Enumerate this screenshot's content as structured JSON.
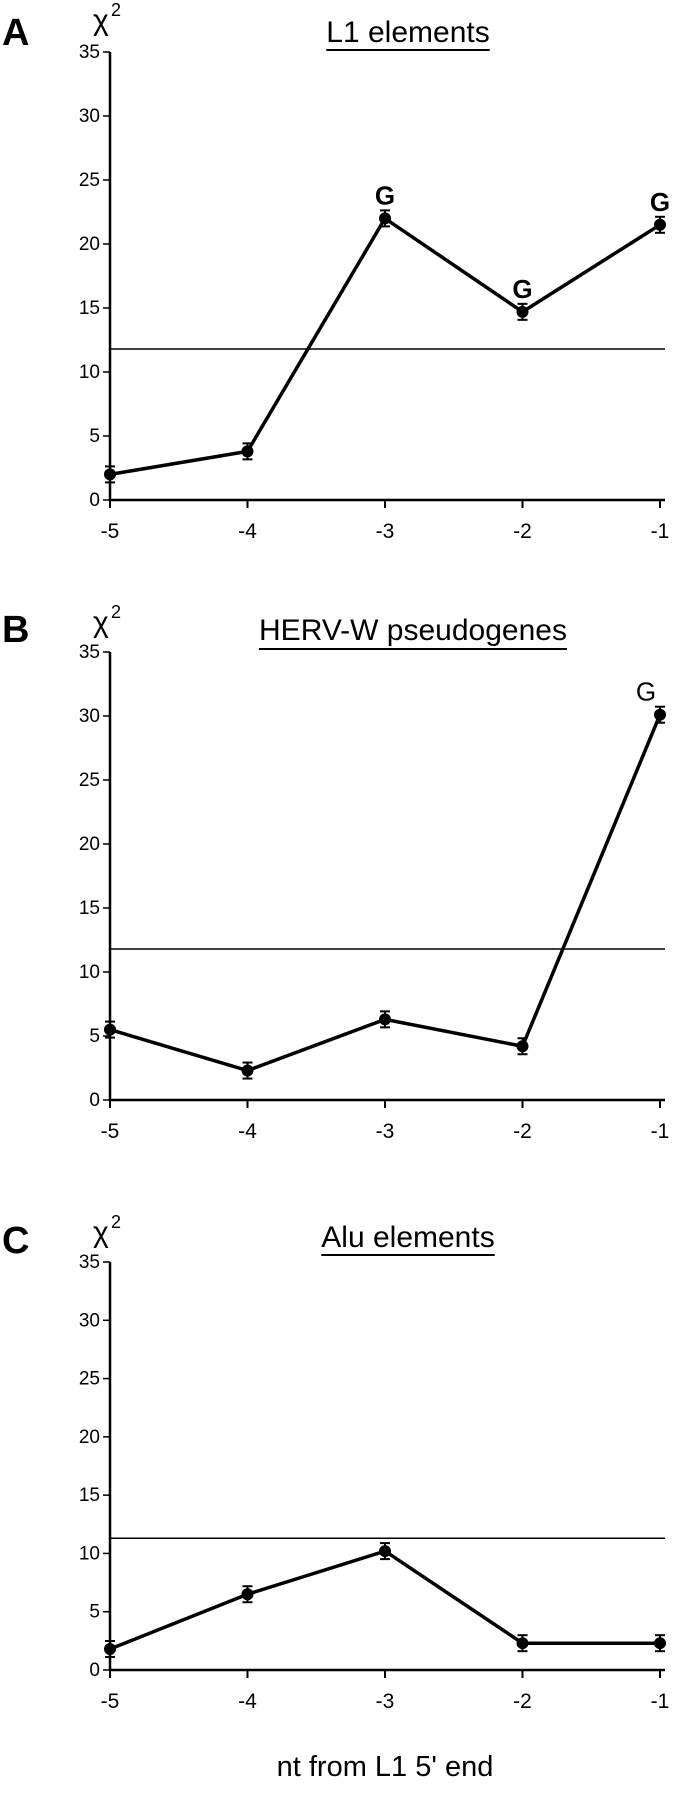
{
  "chart_data": [
    {
      "type": "line",
      "panel": "A",
      "title": "L1 elements",
      "ylabel": "χ",
      "ylabel_superscript": "2",
      "x": [
        -5,
        -4,
        -3,
        -2,
        -1
      ],
      "x_tick_labels": [
        "-5",
        "-4",
        "-3",
        "-2",
        "-1"
      ],
      "y_ticks": [
        0,
        5,
        10,
        15,
        20,
        25,
        30,
        35
      ],
      "ylim": [
        0,
        35
      ],
      "series": [
        {
          "values": [
            2.0,
            3.8,
            22.0,
            14.7,
            21.5
          ]
        }
      ],
      "point_labels": [
        {
          "x": -3,
          "text": "G",
          "bold": true
        },
        {
          "x": -2,
          "text": "G",
          "bold": true
        },
        {
          "x": -1,
          "text": "G",
          "bold": true
        }
      ],
      "threshold": 11.8,
      "grid": false
    },
    {
      "type": "line",
      "panel": "B",
      "title": "HERV-W pseudogenes",
      "ylabel": "χ",
      "ylabel_superscript": "2",
      "x": [
        -5,
        -4,
        -3,
        -2,
        -1
      ],
      "x_tick_labels": [
        "-5",
        "-4",
        "-3",
        "-2",
        "-1"
      ],
      "y_ticks": [
        0,
        5,
        10,
        15,
        20,
        25,
        30,
        35
      ],
      "ylim": [
        0,
        35
      ],
      "series": [
        {
          "values": [
            5.5,
            2.3,
            6.3,
            4.2,
            30.1
          ]
        }
      ],
      "point_labels": [
        {
          "x": -1,
          "text": "G",
          "bold": false
        }
      ],
      "threshold": 11.8,
      "grid": false
    },
    {
      "type": "line",
      "panel": "C",
      "title": "Alu elements",
      "ylabel": "χ",
      "ylabel_superscript": "2",
      "xlabel": "nt from L1 5' end",
      "x": [
        -5,
        -4,
        -3,
        -2,
        -1
      ],
      "x_tick_labels": [
        "-5",
        "-4",
        "-3",
        "-2",
        "-1"
      ],
      "y_ticks": [
        0,
        5,
        10,
        15,
        20,
        25,
        30,
        35
      ],
      "ylim": [
        0,
        35
      ],
      "series": [
        {
          "values": [
            1.8,
            6.5,
            10.2,
            2.3,
            2.3
          ]
        }
      ],
      "point_labels": [],
      "threshold": 11.3,
      "grid": false
    }
  ]
}
